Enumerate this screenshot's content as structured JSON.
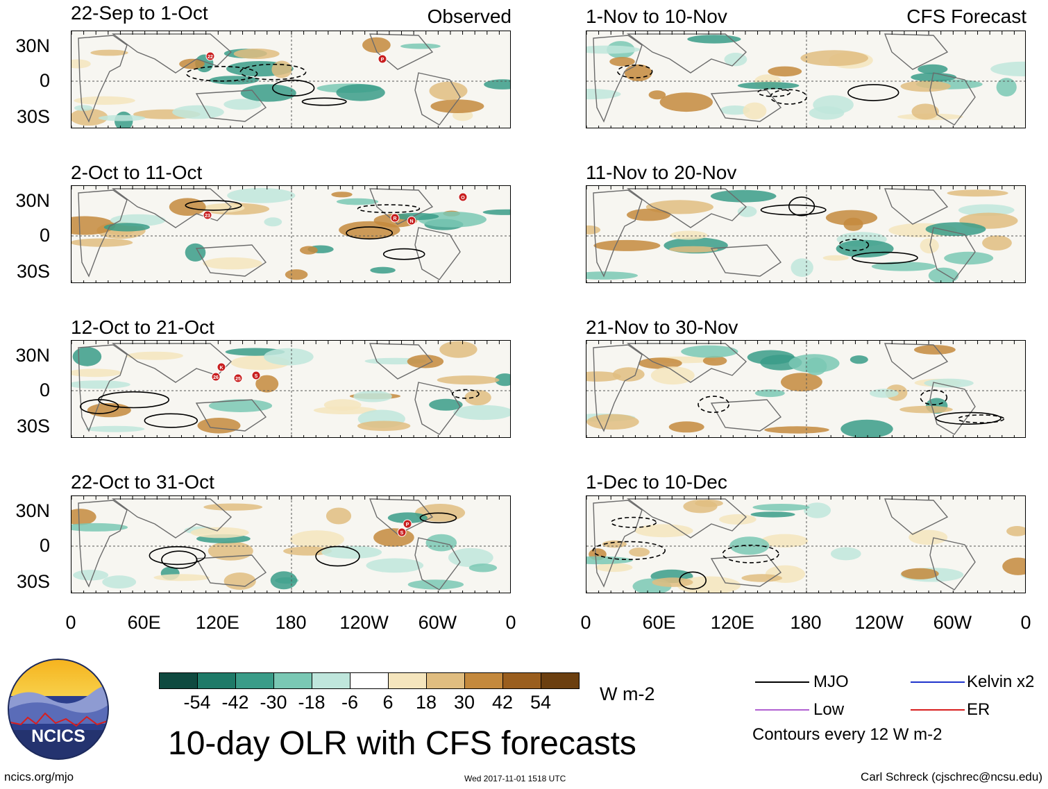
{
  "panels_left": [
    {
      "title": "22-Sep to 1-Oct",
      "tag": "Observed",
      "storms": [
        "22",
        "P"
      ]
    },
    {
      "title": "2-Oct to 11-Oct",
      "tag": "",
      "storms": [
        "23",
        "R",
        "N",
        "O"
      ]
    },
    {
      "title": "12-Oct to 21-Oct",
      "tag": "",
      "storms": [
        "K",
        "26",
        "25",
        "S"
      ]
    },
    {
      "title": "22-Oct to 31-Oct",
      "tag": "",
      "storms": [
        "P",
        "S"
      ]
    }
  ],
  "panels_right": [
    {
      "title": "1-Nov to 10-Nov",
      "tag": "CFS Forecast"
    },
    {
      "title": "11-Nov to 20-Nov",
      "tag": ""
    },
    {
      "title": "21-Nov to 30-Nov",
      "tag": ""
    },
    {
      "title": "1-Dec to 10-Dec",
      "tag": ""
    }
  ],
  "lat_labels": [
    "30N",
    "0",
    "30S"
  ],
  "lon_labels": [
    "0",
    "60E",
    "120E",
    "180",
    "120W",
    "60W",
    "0"
  ],
  "colorbar": {
    "colors": [
      "#0f4a40",
      "#1e7a68",
      "#3a9c88",
      "#7ac8b4",
      "#bfe6dc",
      "#ffffff",
      "#f5e5bd",
      "#e0bd80",
      "#c4893d",
      "#9a5e1e",
      "#6b3f10"
    ],
    "labels": [
      "-54",
      "-42",
      "-30",
      "-18",
      "-6",
      "6",
      "18",
      "30",
      "42",
      "54"
    ],
    "units": "W m-2"
  },
  "legend": {
    "items": [
      {
        "label": "MJO",
        "color": "#000000"
      },
      {
        "label": "Kelvin x2",
        "color": "#1f33cc"
      },
      {
        "label": "Low",
        "color": "#b15fd1"
      },
      {
        "label": "ER",
        "color": "#d81e1e"
      }
    ],
    "note": "Contours every 12 W m-2"
  },
  "logo_text": "NCICS",
  "main_title": "10-day OLR with CFS forecasts",
  "footer": {
    "url": "ncics.org/mjo",
    "timestamp": "Wed 2017-11-01 1518 UTC",
    "credit": "Carl Schreck (cjschrec@ncsu.edu)"
  }
}
